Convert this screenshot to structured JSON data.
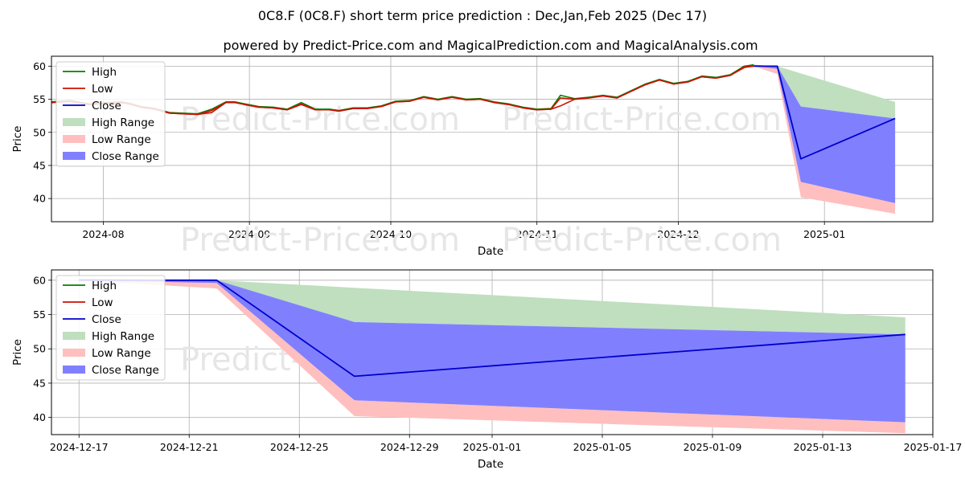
{
  "title": "0C8.F (0C8.F) short term price prediction : Dec,Jan,Feb 2025 (Dec 17)",
  "subtitle": "powered by Predict-Price.com and MagicalPrediction.com and MagicalAnalysis.com",
  "watermark": "Predict-Price.com",
  "colors": {
    "high": "#008000",
    "low": "#cc1100",
    "close": "#0000cc",
    "high_range": "#bfdfbf",
    "low_range": "#ffbfbf",
    "close_range": "#8080ff",
    "grid": "#b0b0b0"
  },
  "legend": [
    {
      "key": "high",
      "label": "High",
      "kind": "line"
    },
    {
      "key": "low",
      "label": "Low",
      "kind": "line"
    },
    {
      "key": "close",
      "label": "Close",
      "kind": "line"
    },
    {
      "key": "high_range",
      "label": "High Range",
      "kind": "patch"
    },
    {
      "key": "low_range",
      "label": "Low Range",
      "kind": "patch"
    },
    {
      "key": "close_range",
      "label": "Close Range",
      "kind": "patch"
    }
  ],
  "chart_data": [
    {
      "type": "line",
      "xlabel": "Date",
      "ylabel": "Price",
      "xlim": [
        "2024-07-21",
        "2025-01-24"
      ],
      "ylim": [
        36.5,
        61.5
      ],
      "yticks": [
        40,
        45,
        50,
        55,
        60
      ],
      "xticks": [
        "2024-08-01",
        "2024-09-01",
        "2024-10-01",
        "2024-11-01",
        "2024-12-01",
        "2025-01-01"
      ],
      "xtick_labels": [
        "2024-08",
        "2024-09",
        "2024-10",
        "2024-11",
        "2024-12",
        "2025-01"
      ],
      "grid": true,
      "legend_position": "top-left",
      "history": {
        "dates": [
          "2024-07-21",
          "2024-07-25",
          "2024-07-29",
          "2024-08-02",
          "2024-08-05",
          "2024-08-07",
          "2024-08-09",
          "2024-08-12",
          "2024-08-15",
          "2024-08-18",
          "2024-08-21",
          "2024-08-24",
          "2024-08-27",
          "2024-08-29",
          "2024-08-31",
          "2024-09-03",
          "2024-09-06",
          "2024-09-09",
          "2024-09-12",
          "2024-09-15",
          "2024-09-18",
          "2024-09-20",
          "2024-09-23",
          "2024-09-26",
          "2024-09-29",
          "2024-10-02",
          "2024-10-05",
          "2024-10-08",
          "2024-10-11",
          "2024-10-14",
          "2024-10-17",
          "2024-10-20",
          "2024-10-23",
          "2024-10-26",
          "2024-10-29",
          "2024-11-01",
          "2024-11-04",
          "2024-11-06",
          "2024-11-09",
          "2024-11-12",
          "2024-11-15",
          "2024-11-18",
          "2024-11-21",
          "2024-11-24",
          "2024-11-27",
          "2024-11-30",
          "2024-12-03",
          "2024-12-06",
          "2024-12-09",
          "2024-12-12",
          "2024-12-15",
          "2024-12-17"
        ],
        "high": [
          54.6,
          54.8,
          54.3,
          54.5,
          54.6,
          54.3,
          53.9,
          53.6,
          53.0,
          52.9,
          52.8,
          53.5,
          54.6,
          54.6,
          54.3,
          53.9,
          53.8,
          53.5,
          54.5,
          53.5,
          53.5,
          53.3,
          53.7,
          53.7,
          54.0,
          54.7,
          54.8,
          55.4,
          55.0,
          55.4,
          55.0,
          55.1,
          54.6,
          54.3,
          53.8,
          53.5,
          53.6,
          55.6,
          55.1,
          55.3,
          55.6,
          55.3,
          56.3,
          57.3,
          58.0,
          57.4,
          57.7,
          58.5,
          58.3,
          58.7,
          60.0,
          60.2
        ],
        "low": [
          54.5,
          54.7,
          54.2,
          54.4,
          54.5,
          54.2,
          53.8,
          53.5,
          52.9,
          52.8,
          52.7,
          53.0,
          54.5,
          54.5,
          54.2,
          53.8,
          53.7,
          53.4,
          54.2,
          53.4,
          53.4,
          53.2,
          53.6,
          53.6,
          53.9,
          54.6,
          54.7,
          55.3,
          54.9,
          55.3,
          54.9,
          55.0,
          54.5,
          54.2,
          53.7,
          53.4,
          53.5,
          54.0,
          55.0,
          55.2,
          55.5,
          55.2,
          56.2,
          57.2,
          57.9,
          57.3,
          57.6,
          58.4,
          58.2,
          58.6,
          59.8,
          60.0
        ],
        "close": [
          54.5,
          54.7,
          54.2,
          54.4,
          54.5,
          54.2,
          53.8,
          53.5,
          52.9,
          52.8,
          52.7,
          53.3,
          54.5,
          54.5,
          54.2,
          53.8,
          53.7,
          53.4,
          54.3,
          53.4,
          53.4,
          53.2,
          53.6,
          53.6,
          53.9,
          54.6,
          54.7,
          55.3,
          54.9,
          55.3,
          54.9,
          55.0,
          54.5,
          54.2,
          53.7,
          53.4,
          53.5,
          55.2,
          55.0,
          55.2,
          55.5,
          55.2,
          56.2,
          57.2,
          57.9,
          57.3,
          57.6,
          58.4,
          58.2,
          58.6,
          59.9,
          60.0
        ]
      },
      "forecast": {
        "dates": [
          "2024-12-17",
          "2024-12-22",
          "2024-12-27",
          "2025-01-16"
        ],
        "close": [
          60.0,
          60.0,
          46.0,
          52.1
        ],
        "high_range": [
          [
            60.0,
            60.2
          ],
          [
            59.8,
            60.0
          ],
          [
            53.9,
            58.9
          ],
          [
            52.1,
            54.6
          ]
        ],
        "low_range": [
          [
            60.0,
            60.2
          ],
          [
            58.8,
            60.0
          ],
          [
            40.2,
            42.5
          ],
          [
            37.7,
            39.3
          ]
        ],
        "close_range": [
          [
            60.0,
            60.2
          ],
          [
            59.6,
            60.0
          ],
          [
            42.5,
            53.9
          ],
          [
            39.3,
            52.1
          ]
        ]
      }
    },
    {
      "type": "line",
      "xlabel": "Date",
      "ylabel": "Price",
      "xlim": [
        "2024-12-16",
        "2025-01-17"
      ],
      "ylim": [
        37.5,
        61.5
      ],
      "yticks": [
        40,
        45,
        50,
        55,
        60
      ],
      "xticks": [
        "2024-12-17",
        "2024-12-21",
        "2024-12-25",
        "2024-12-29",
        "2025-01-01",
        "2025-01-05",
        "2025-01-09",
        "2025-01-13",
        "2025-01-17"
      ],
      "xtick_labels": [
        "2024-12-17",
        "2024-12-21",
        "2024-12-25",
        "2024-12-29",
        "2025-01-01",
        "2025-01-05",
        "2025-01-09",
        "2025-01-13",
        "2025-01-17"
      ],
      "grid": true,
      "legend_position": "top-left",
      "forecast": {
        "dates": [
          "2024-12-17",
          "2024-12-22",
          "2024-12-27",
          "2025-01-16"
        ],
        "close": [
          60.0,
          60.0,
          46.0,
          52.1
        ],
        "high_range": [
          [
            60.0,
            60.2
          ],
          [
            59.8,
            60.0
          ],
          [
            53.9,
            58.9
          ],
          [
            52.1,
            54.6
          ]
        ],
        "low_range": [
          [
            60.0,
            60.2
          ],
          [
            58.8,
            60.0
          ],
          [
            40.2,
            42.5
          ],
          [
            37.7,
            39.3
          ]
        ],
        "close_range": [
          [
            60.0,
            60.2
          ],
          [
            59.6,
            60.0
          ],
          [
            42.5,
            53.9
          ],
          [
            39.3,
            52.1
          ]
        ]
      }
    }
  ]
}
